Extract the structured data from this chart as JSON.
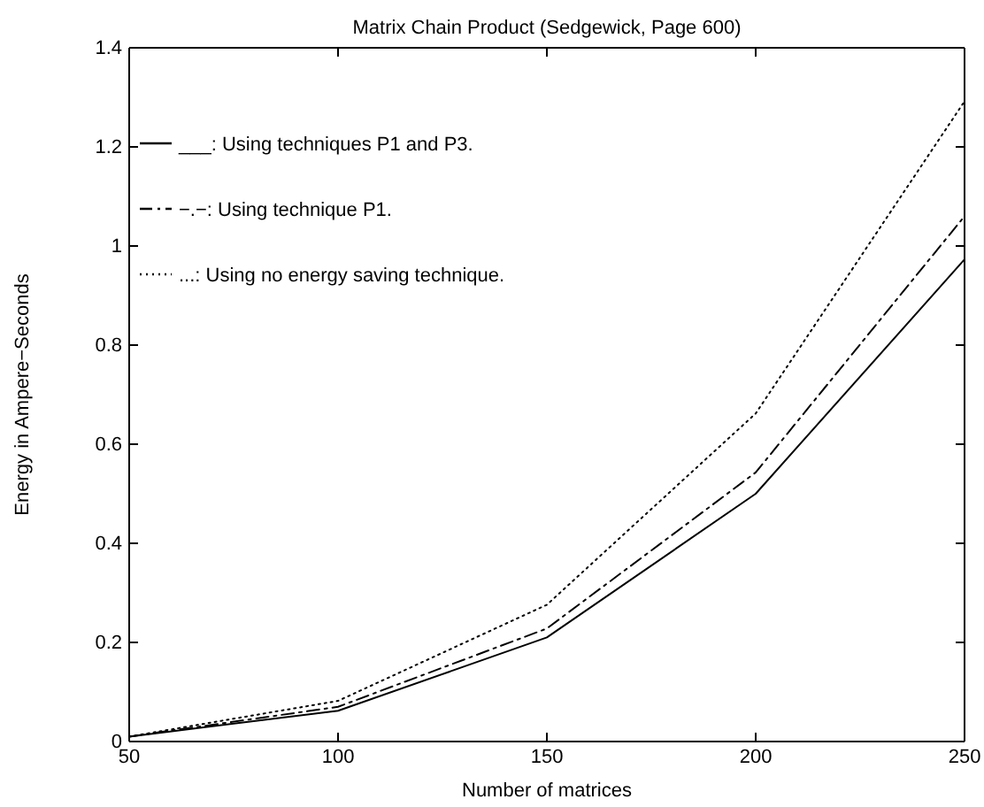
{
  "chart_data": {
    "type": "line",
    "title": "Matrix Chain Product (Sedgewick, Page 600)",
    "xlabel": "Number of matrices",
    "ylabel": "Energy in Ampere−Seconds",
    "x": [
      50,
      100,
      150,
      200,
      250
    ],
    "series": [
      {
        "name": "___: Using techniques P1 and P3.",
        "color": "#000000",
        "line_style": "solid",
        "values": [
          0.01,
          0.062,
          0.21,
          0.5,
          0.973
        ]
      },
      {
        "name": "−.−: Using technique P1.",
        "color": "#000000",
        "line_style": "dashed",
        "values": [
          0.01,
          0.07,
          0.228,
          0.543,
          1.06
        ]
      },
      {
        "name": "...: Using no energy saving technique.",
        "color": "#000000",
        "line_style": "dotted",
        "values": [
          0.01,
          0.082,
          0.276,
          0.662,
          1.292
        ]
      }
    ],
    "xlim": [
      50,
      250
    ],
    "xticks": [
      50,
      100,
      150,
      200,
      250
    ],
    "ylim": [
      0,
      1.4
    ],
    "yticks": [
      0,
      0.2,
      0.4,
      0.6,
      0.8,
      1,
      1.2,
      1.4
    ],
    "legend": "top left",
    "marker": "none",
    "grid": false
  }
}
